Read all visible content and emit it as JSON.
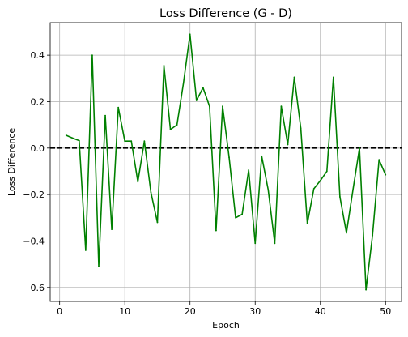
{
  "chart_data": {
    "type": "line",
    "title": "Loss Difference (G - D)",
    "xlabel": "Epoch",
    "ylabel": "Loss Difference",
    "xlim": [
      -1.45,
      52.45
    ],
    "ylim": [
      -0.66,
      0.54
    ],
    "xticks": [
      0,
      10,
      20,
      30,
      40,
      50
    ],
    "yticks": [
      -0.6,
      -0.4,
      -0.2,
      0.0,
      0.2,
      0.4
    ],
    "xtick_labels": [
      "0",
      "10",
      "20",
      "30",
      "40",
      "50"
    ],
    "ytick_labels": [
      "−0.6",
      "−0.4",
      "−0.2",
      "0.0",
      "0.2",
      "0.4"
    ],
    "grid": true,
    "reference_line": {
      "y": 0.0,
      "style": "dashed",
      "color": "#000000"
    },
    "series": [
      {
        "color": "#008000",
        "x": [
          1,
          2,
          3,
          4,
          5,
          6,
          7,
          8,
          9,
          10,
          11,
          12,
          13,
          14,
          15,
          16,
          17,
          18,
          19,
          20,
          21,
          22,
          23,
          24,
          25,
          26,
          27,
          28,
          29,
          30,
          31,
          32,
          33,
          34,
          35,
          36,
          37,
          38,
          39,
          40,
          41,
          42,
          43,
          44,
          45,
          46,
          47,
          48,
          49,
          50
        ],
        "values": [
          0.055,
          0.043,
          0.032,
          -0.44,
          0.4,
          -0.51,
          0.14,
          -0.35,
          0.175,
          0.03,
          0.03,
          -0.145,
          0.03,
          -0.19,
          -0.32,
          0.355,
          0.08,
          0.1,
          0.28,
          0.49,
          0.205,
          0.26,
          0.18,
          -0.355,
          0.18,
          -0.04,
          -0.3,
          -0.285,
          -0.095,
          -0.41,
          -0.035,
          -0.18,
          -0.41,
          0.18,
          0.015,
          0.305,
          0.085,
          -0.325,
          -0.175,
          -0.14,
          -0.1,
          0.305,
          -0.21,
          -0.365,
          -0.18,
          0.0,
          -0.61,
          -0.375,
          -0.05,
          -0.115
        ]
      }
    ]
  }
}
